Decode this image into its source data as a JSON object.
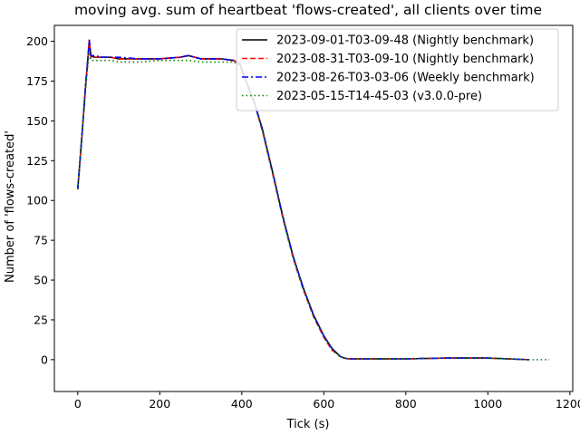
{
  "chart_data": {
    "type": "line",
    "title": "moving avg. sum of heartbeat 'flows-created', all clients over time",
    "xlabel": "Tick (s)",
    "ylabel": "Number of 'flows-created'",
    "xlim": [
      -57,
      1207
    ],
    "ylim": [
      -20,
      210
    ],
    "xticks": [
      0,
      200,
      400,
      600,
      800,
      1000,
      1200
    ],
    "yticks": [
      0,
      25,
      50,
      75,
      100,
      125,
      150,
      175,
      200
    ],
    "grid": false,
    "legend_position": "top-right",
    "series": [
      {
        "name": "2023-09-01-T03-09-48 (Nightly benchmark)",
        "color": "#000000",
        "style": "solid",
        "x": [
          0,
          10,
          20,
          25,
          28,
          32,
          40,
          60,
          80,
          100,
          150,
          200,
          250,
          270,
          300,
          350,
          380,
          395,
          410,
          430,
          450,
          475,
          500,
          525,
          550,
          575,
          600,
          620,
          640,
          650,
          660,
          670,
          680,
          700,
          800,
          900,
          1000,
          1050,
          1100
        ],
        "y": [
          107,
          140,
          175,
          190,
          200,
          191,
          190,
          190,
          190,
          189,
          189,
          189,
          190,
          191,
          189,
          189,
          188,
          186,
          175,
          162,
          145,
          118,
          90,
          65,
          45,
          28,
          15,
          7,
          2,
          1,
          0.5,
          0.5,
          0.5,
          0.5,
          0.5,
          1,
          1,
          0.5,
          0
        ]
      },
      {
        "name": "2023-08-31-T03-09-10 (Nightly benchmark)",
        "color": "#ff0000",
        "style": "dashed",
        "x": [
          0,
          10,
          20,
          25,
          28,
          32,
          40,
          60,
          80,
          100,
          150,
          200,
          250,
          270,
          300,
          350,
          380,
          395,
          410,
          430,
          450,
          475,
          500,
          525,
          550,
          575,
          600,
          620,
          640,
          650,
          660,
          670,
          680,
          700,
          800,
          900,
          1000,
          1050,
          1100
        ],
        "y": [
          107,
          140,
          175,
          190,
          201,
          190,
          190,
          190,
          190,
          189,
          189,
          189,
          190,
          191,
          189,
          189,
          188,
          186,
          175,
          162,
          144,
          117,
          89,
          64,
          44,
          27,
          14,
          6,
          2,
          1,
          0.5,
          0.5,
          0.5,
          0.5,
          0.5,
          1,
          1,
          0.5,
          0
        ]
      },
      {
        "name": "2023-08-26-T03-03-06 (Weekly benchmark)",
        "color": "#0000ff",
        "style": "dashdot",
        "x": [
          0,
          10,
          20,
          25,
          28,
          32,
          40,
          60,
          80,
          100,
          150,
          200,
          250,
          270,
          300,
          350,
          380,
          395,
          410,
          430,
          450,
          475,
          500,
          525,
          550,
          575,
          600,
          620,
          640,
          650,
          660,
          670,
          680,
          700,
          800,
          900,
          1000,
          1050,
          1100
        ],
        "y": [
          107,
          140,
          175,
          190,
          201,
          191,
          191,
          190,
          190,
          190,
          189,
          189,
          190,
          191,
          189,
          189,
          188,
          186,
          176,
          162,
          145,
          118,
          90,
          65,
          45,
          28,
          15,
          7,
          2,
          1,
          0.5,
          0.5,
          0.5,
          0.5,
          0.5,
          1,
          1,
          0.5,
          0
        ]
      },
      {
        "name": "2023-05-15-T14-45-03 (v3.0.0-pre)",
        "color": "#008000",
        "style": "dotted",
        "x": [
          0,
          10,
          20,
          25,
          28,
          32,
          40,
          60,
          80,
          100,
          150,
          200,
          250,
          270,
          300,
          350,
          380,
          395,
          410,
          430,
          450,
          475,
          500,
          525,
          550,
          575,
          600,
          620,
          640,
          650,
          660,
          670,
          680,
          700,
          800,
          900,
          1000,
          1050,
          1100,
          1150
        ],
        "y": [
          107,
          140,
          172,
          186,
          193,
          188,
          188,
          188,
          188,
          187,
          187,
          188,
          188,
          188,
          187,
          187,
          187,
          185,
          175,
          161,
          144,
          117,
          89,
          64,
          44,
          27,
          14,
          6,
          2,
          1,
          0.5,
          0.5,
          0.5,
          0.5,
          0.5,
          1,
          1,
          0.5,
          0,
          0
        ]
      }
    ]
  }
}
